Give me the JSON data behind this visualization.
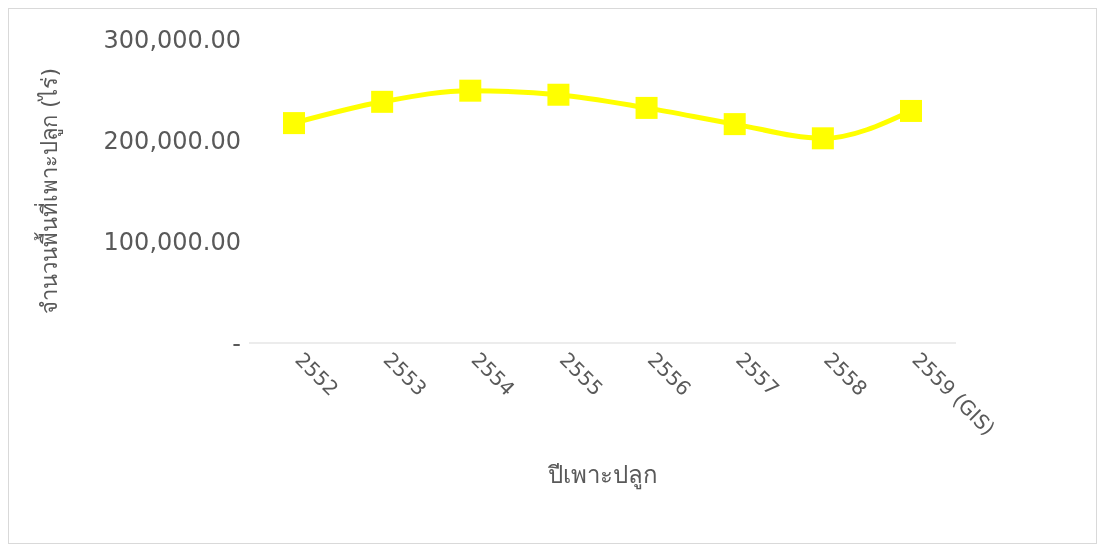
{
  "chart_data": {
    "type": "line",
    "xlabel": "ปีเพาะปลูก",
    "ylabel": "จำนวนพื้นที่เพาะปลูก (ไร่)",
    "categories": [
      "2552",
      "2553",
      "2554",
      "2555",
      "2556",
      "2557",
      "2558",
      "2559 (GIS)"
    ],
    "series": [
      {
        "color": "#ffff00",
        "values": [
          217000,
          238000,
          249000,
          245000,
          232000,
          216000,
          202000,
          229000
        ]
      }
    ],
    "ylim": [
      0,
      300000
    ],
    "yticks": [
      {
        "value": 0,
        "label": "-"
      },
      {
        "value": 100000,
        "label": "100,000.00"
      },
      {
        "value": 200000,
        "label": "200,000.00"
      },
      {
        "value": 300000,
        "label": "300,000.00"
      }
    ],
    "grid": false,
    "legend": false,
    "marker": "square",
    "line_style": "solid"
  }
}
